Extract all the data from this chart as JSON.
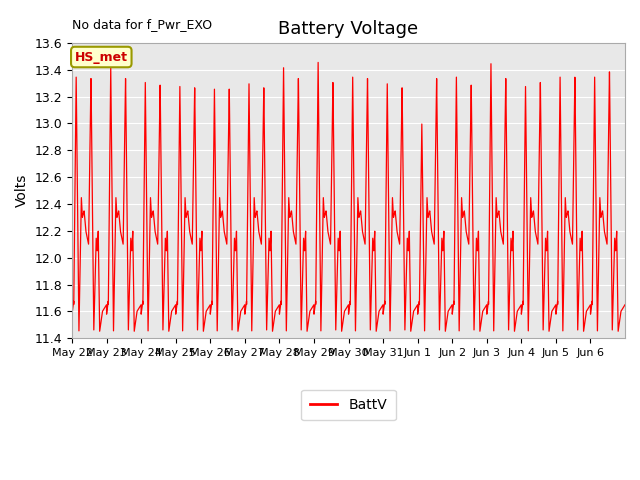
{
  "title": "Battery Voltage",
  "ylabel": "Volts",
  "annotation": "No data for f_Pwr_EXO",
  "legend_label": "BattV",
  "line_color": "red",
  "ylim": [
    11.4,
    13.6
  ],
  "yticks": [
    11.4,
    11.6,
    11.8,
    12.0,
    12.2,
    12.4,
    12.6,
    12.8,
    13.0,
    13.2,
    13.4,
    13.6
  ],
  "bg_color": "#e8e8e8",
  "box_label": "HS_met",
  "box_facecolor": "#ffffcc",
  "box_edgecolor": "#999900",
  "box_textcolor": "#cc0000",
  "n_days": 16,
  "day_labels": [
    "May 22",
    "May 23",
    "May 24",
    "May 25",
    "May 26",
    "May 27",
    "May 28",
    "May 29",
    "May 30",
    "May 31",
    "Jun 1",
    "Jun 2",
    "Jun 3",
    "Jun 4",
    "Jun 5",
    "Jun 6"
  ],
  "figsize": [
    6.4,
    4.8
  ],
  "dpi": 100
}
